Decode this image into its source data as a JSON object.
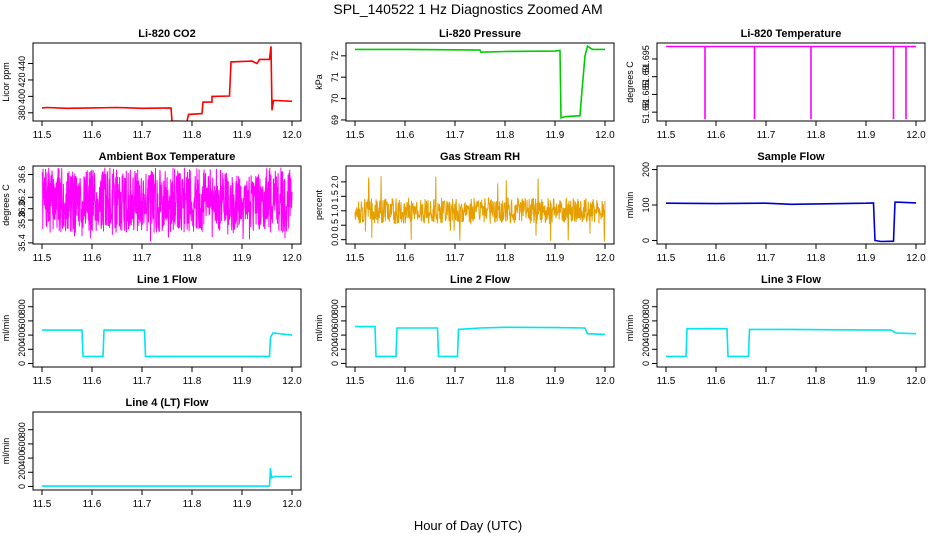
{
  "figure": {
    "title": "SPL_140522 1 Hz Diagnostics Zoomed AM",
    "xlabel": "Hour of Day (UTC)"
  },
  "chart_data": [
    {
      "type": "line",
      "title": "Li-820 CO2",
      "ylabel": "Licor ppm",
      "color": "#ff0000",
      "xlim": [
        11.5,
        12.0
      ],
      "xticks": [
        "11.5",
        "11.6",
        "11.7",
        "11.8",
        "11.9",
        "12.0"
      ],
      "ylim": [
        370,
        465
      ],
      "yticks": [
        380,
        400,
        420,
        440
      ],
      "series": [
        {
          "name": "",
          "segments": [
            [
              [
                11.5,
                386
              ],
              [
                11.51,
                386.5
              ],
              [
                11.55,
                385.5
              ],
              [
                11.6,
                386
              ],
              [
                11.65,
                386.5
              ],
              [
                11.7,
                385.5
              ],
              [
                11.758,
                386
              ],
              [
                11.76,
                370
              ],
              [
                11.79,
                369.5
              ],
              [
                11.793,
                378
              ],
              [
                11.82,
                379
              ],
              [
                11.822,
                393
              ],
              [
                11.84,
                393
              ],
              [
                11.84,
                400
              ],
              [
                11.875,
                400.5
              ],
              [
                11.878,
                442
              ],
              [
                11.92,
                443
              ],
              [
                11.93,
                440
              ],
              [
                11.935,
                445
              ],
              [
                11.955,
                445
              ],
              [
                11.958,
                461
              ],
              [
                11.96,
                383
              ],
              [
                11.963,
                395
              ],
              [
                11.97,
                395
              ],
              [
                12.0,
                394
              ]
            ]
          ]
        }
      ]
    },
    {
      "type": "line",
      "title": "Li-820 Pressure",
      "ylabel": "kPa",
      "color": "#00cc00",
      "xlim": [
        11.5,
        12.0
      ],
      "xticks": [
        "11.5",
        "11.6",
        "11.7",
        "11.8",
        "11.9",
        "12.0"
      ],
      "ylim": [
        68.95,
        72.6
      ],
      "yticks": [
        69,
        70,
        71,
        72
      ],
      "series": [
        {
          "name": "",
          "segments": [
            [
              [
                11.5,
                72.3
              ],
              [
                11.6,
                72.3
              ],
              [
                11.7,
                72.28
              ],
              [
                11.75,
                72.27
              ],
              [
                11.752,
                72.17
              ],
              [
                11.8,
                72.2
              ],
              [
                11.9,
                72.22
              ],
              [
                11.91,
                72.25
              ],
              [
                11.912,
                69.1
              ],
              [
                11.92,
                69.15
              ],
              [
                11.95,
                69.2
              ],
              [
                11.953,
                70.1
              ],
              [
                11.96,
                72.0
              ],
              [
                11.965,
                72.45
              ],
              [
                11.975,
                72.3
              ],
              [
                12.0,
                72.3
              ]
            ]
          ]
        }
      ]
    },
    {
      "type": "line",
      "title": "Li-820 Temperature",
      "ylabel": "degrees C",
      "color": "#ff00ff",
      "xlim": [
        11.5,
        12.0
      ],
      "xticks": [
        "11.5",
        "11.6",
        "11.7",
        "11.8",
        "11.9",
        "12.0"
      ],
      "ylim": [
        51.6775,
        51.6995
      ],
      "yticks": [
        51.68,
        51.685,
        51.69,
        51.695
      ],
      "series": [
        {
          "name": "",
          "segments": [
            [
              [
                11.5,
                51.6985
              ],
              [
                11.578,
                51.6985
              ],
              [
                11.578,
                51.678
              ],
              [
                11.578,
                51.6985
              ],
              [
                11.677,
                51.6985
              ],
              [
                11.677,
                51.678
              ],
              [
                11.677,
                51.6985
              ],
              [
                11.79,
                51.6985
              ],
              [
                11.79,
                51.678
              ],
              [
                11.79,
                51.6985
              ],
              [
                11.955,
                51.6985
              ],
              [
                11.955,
                51.678
              ],
              [
                11.955,
                51.6985
              ],
              [
                11.98,
                51.6985
              ],
              [
                11.98,
                51.678
              ],
              [
                11.98,
                51.6985
              ],
              [
                12.0,
                51.6985
              ]
            ]
          ]
        }
      ]
    },
    {
      "type": "line",
      "title": "Ambient Box Temperature",
      "ylabel": "degrees C",
      "color": "#ff00ff",
      "noise": {
        "base": 36.0,
        "low": 35.58,
        "high": 36.72,
        "spike_low": 35.42,
        "spike_high": 36.68,
        "n": 900,
        "seed": 7
      },
      "xlim": [
        11.5,
        12.0
      ],
      "xticks": [
        "11.5",
        "11.6",
        "11.7",
        "11.8",
        "11.9",
        "12.0"
      ],
      "ylim": [
        35.38,
        36.75
      ],
      "yticks": [
        35.4,
        35.8,
        36.0,
        36.2,
        36.6
      ],
      "ytick_labels": [
        "35.4",
        "35.8",
        "36.0",
        "36.2",
        "36.6"
      ],
      "series": [
        {
          "name": "",
          "segments": []
        }
      ]
    },
    {
      "type": "line",
      "title": "Gas Stream RH",
      "ylabel": "percent",
      "color": "#e69f00",
      "noise": {
        "base": 1.0,
        "low": 0.55,
        "high": 1.45,
        "spike_low": -0.1,
        "spike_high": 2.3,
        "n": 700,
        "seed": 13
      },
      "xlim": [
        11.5,
        12.0
      ],
      "xticks": [
        "11.5",
        "11.6",
        "11.7",
        "11.8",
        "11.9",
        "12.0"
      ],
      "ylim": [
        -0.15,
        2.55
      ],
      "yticks": [
        0.0,
        0.5,
        1.0,
        1.5,
        2.0
      ],
      "ytick_labels": [
        "0.0",
        "0.5",
        "1.0",
        "1.5",
        "2.0"
      ],
      "series": [
        {
          "name": "",
          "segments": []
        }
      ]
    },
    {
      "type": "line",
      "title": "Sample Flow",
      "ylabel": "ml/min",
      "color": "#0000cc",
      "xlim": [
        11.5,
        12.0
      ],
      "xticks": [
        "11.5",
        "11.6",
        "11.7",
        "11.8",
        "11.9",
        "12.0"
      ],
      "ylim": [
        -10,
        210
      ],
      "yticks": [
        0,
        100,
        200
      ],
      "series": [
        {
          "name": "",
          "segments": [
            [
              [
                11.5,
                105
              ],
              [
                11.6,
                104
              ],
              [
                11.7,
                105
              ],
              [
                11.75,
                102
              ],
              [
                11.8,
                103
              ],
              [
                11.9,
                105
              ],
              [
                11.915,
                106
              ],
              [
                11.918,
                0
              ],
              [
                11.93,
                -3
              ],
              [
                11.955,
                -2
              ],
              [
                11.958,
                108
              ],
              [
                11.965,
                108
              ],
              [
                12.0,
                106
              ]
            ]
          ]
        }
      ]
    },
    {
      "type": "line",
      "title": "Line 1 Flow",
      "ylabel": "ml/min",
      "color": "#00e5ee",
      "xlim": [
        11.5,
        12.0
      ],
      "xticks": [
        "11.5",
        "11.6",
        "11.7",
        "11.8",
        "11.9",
        "12.0"
      ],
      "ylim": [
        -50,
        1050
      ],
      "yticks": [
        0,
        200,
        400,
        600,
        800
      ],
      "series": [
        {
          "name": "",
          "segments": [
            [
              [
                11.5,
                470
              ],
              [
                11.58,
                470
              ],
              [
                11.582,
                100
              ],
              [
                11.622,
                100
              ],
              [
                11.624,
                470
              ],
              [
                11.705,
                470
              ],
              [
                11.707,
                100
              ],
              [
                11.955,
                100
              ],
              [
                11.957,
                370
              ],
              [
                11.962,
                430
              ],
              [
                12.0,
                400
              ]
            ]
          ]
        }
      ]
    },
    {
      "type": "line",
      "title": "Line 2 Flow",
      "ylabel": "ml/min",
      "color": "#00e5ee",
      "xlim": [
        11.5,
        12.0
      ],
      "xticks": [
        "11.5",
        "11.6",
        "11.7",
        "11.8",
        "11.9",
        "12.0"
      ],
      "ylim": [
        -50,
        1050
      ],
      "yticks": [
        0,
        200,
        400,
        600,
        800
      ],
      "series": [
        {
          "name": "",
          "segments": [
            [
              [
                11.5,
                520
              ],
              [
                11.54,
                520
              ],
              [
                11.542,
                100
              ],
              [
                11.582,
                100
              ],
              [
                11.584,
                500
              ],
              [
                11.665,
                500
              ],
              [
                11.667,
                100
              ],
              [
                11.705,
                100
              ],
              [
                11.707,
                480
              ],
              [
                11.75,
                500
              ],
              [
                11.8,
                510
              ],
              [
                11.9,
                505
              ],
              [
                11.96,
                500
              ],
              [
                11.965,
                420
              ],
              [
                12.0,
                410
              ]
            ]
          ]
        }
      ]
    },
    {
      "type": "line",
      "title": "Line 3 Flow",
      "ylabel": "ml/min",
      "color": "#00e5ee",
      "xlim": [
        11.5,
        12.0
      ],
      "xticks": [
        "11.5",
        "11.6",
        "11.7",
        "11.8",
        "11.9",
        "12.0"
      ],
      "ylim": [
        -50,
        1050
      ],
      "yticks": [
        0,
        200,
        400,
        600,
        800
      ],
      "series": [
        {
          "name": "",
          "segments": [
            [
              [
                11.5,
                100
              ],
              [
                11.54,
                100
              ],
              [
                11.542,
                490
              ],
              [
                11.622,
                490
              ],
              [
                11.624,
                100
              ],
              [
                11.665,
                100
              ],
              [
                11.667,
                480
              ],
              [
                11.75,
                480
              ],
              [
                11.85,
                475
              ],
              [
                11.95,
                470
              ],
              [
                11.96,
                430
              ],
              [
                12.0,
                420
              ]
            ]
          ]
        }
      ]
    },
    {
      "type": "line",
      "title": "Line 4 (LT) Flow",
      "ylabel": "ml/min",
      "color": "#00e5ee",
      "xlim": [
        11.5,
        12.0
      ],
      "xticks": [
        "11.5",
        "11.6",
        "11.7",
        "11.8",
        "11.9",
        "12.0"
      ],
      "ylim": [
        -50,
        1050
      ],
      "yticks": [
        0,
        200,
        400,
        600,
        800
      ],
      "series": [
        {
          "name": "",
          "segments": [
            [
              [
                11.5,
                5
              ],
              [
                11.6,
                5
              ],
              [
                11.7,
                5
              ],
              [
                11.8,
                5
              ],
              [
                11.9,
                5
              ],
              [
                11.955,
                5
              ],
              [
                11.957,
                260
              ],
              [
                11.959,
                120
              ],
              [
                11.965,
                140
              ],
              [
                12.0,
                140
              ]
            ]
          ]
        }
      ]
    }
  ]
}
